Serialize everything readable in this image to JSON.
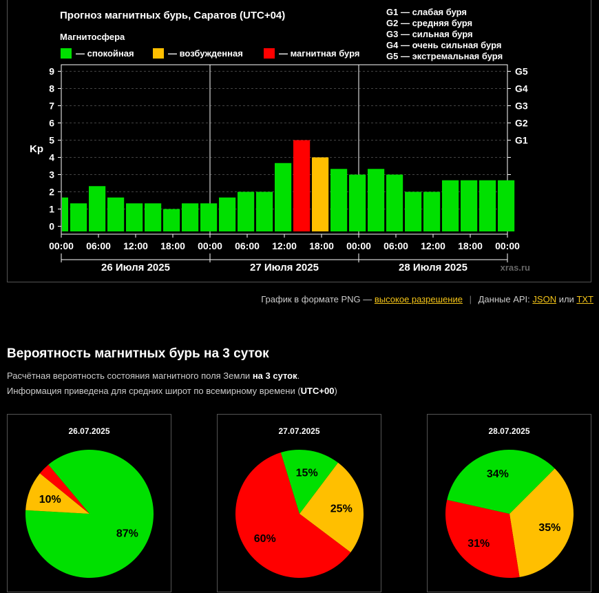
{
  "chart_data": [
    {
      "type": "bar",
      "title": "Прогноз магнитных бурь, Саратов (UTC+04)",
      "legend_title": "Магнитосфера",
      "legend": [
        {
          "label": "— спокойная",
          "color": "#00e000"
        },
        {
          "label": "— возбужденная",
          "color": "#ffbf00"
        },
        {
          "label": "— магнитная буря",
          "color": "#ff0000"
        }
      ],
      "g_scale": [
        "G1 — слабая буря",
        "G2 — средняя буря",
        "G3 — сильная буря",
        "G4 — очень сильная буря",
        "G5 — экстремальная буря"
      ],
      "ylabel": "Kp",
      "ylim": [
        0,
        9
      ],
      "yticks": [
        "0",
        "1",
        "2",
        "3",
        "4",
        "5",
        "6",
        "7",
        "8",
        "9"
      ],
      "right_ticks": [
        {
          "label": "G1",
          "value": 5
        },
        {
          "label": "G2",
          "value": 6
        },
        {
          "label": "G3",
          "value": 7
        },
        {
          "label": "G4",
          "value": 8
        },
        {
          "label": "G5",
          "value": 9
        }
      ],
      "xticks": [
        "00:00",
        "06:00",
        "12:00",
        "18:00",
        "00:00",
        "06:00",
        "12:00",
        "18:00",
        "00:00",
        "06:00",
        "12:00",
        "18:00",
        "00:00"
      ],
      "days": [
        "26 Июля 2025",
        "27 Июля 2025",
        "28 Июля 2025"
      ],
      "watermark": "xras.ru",
      "grid": true,
      "series": [
        {
          "values": [
            1.67,
            1.33,
            2.33,
            1.67,
            1.33,
            1.33,
            1.0,
            1.33,
            1.33,
            1.67,
            2.0,
            2.0,
            3.67,
            5.0,
            4.0,
            3.33,
            3.0,
            3.33,
            3.0,
            2.0,
            2.0,
            2.67,
            2.67,
            2.67,
            2.67
          ],
          "levels": [
            "quiet",
            "quiet",
            "quiet",
            "quiet",
            "quiet",
            "quiet",
            "quiet",
            "quiet",
            "quiet",
            "quiet",
            "quiet",
            "quiet",
            "quiet",
            "storm",
            "active",
            "quiet",
            "quiet",
            "quiet",
            "quiet",
            "quiet",
            "quiet",
            "quiet",
            "quiet",
            "quiet",
            "quiet"
          ]
        }
      ],
      "colors": {
        "quiet": "#00e000",
        "active": "#ffbf00",
        "storm": "#ff0000"
      }
    },
    {
      "type": "pie",
      "title": "26.07.2025",
      "slices": [
        {
          "label": "87%",
          "value": 87,
          "color": "#00e000",
          "show_label": true
        },
        {
          "label": "10%",
          "value": 10,
          "color": "#ffbf00",
          "show_label": true
        },
        {
          "label": "3%",
          "value": 3,
          "color": "#ff0000",
          "show_label": false
        }
      ]
    },
    {
      "type": "pie",
      "title": "27.07.2025",
      "slices": [
        {
          "label": "25%",
          "value": 25,
          "color": "#ffbf00",
          "show_label": true
        },
        {
          "label": "60%",
          "value": 60,
          "color": "#ff0000",
          "show_label": true
        },
        {
          "label": "15%",
          "value": 15,
          "color": "#00e000",
          "show_label": true
        }
      ]
    },
    {
      "type": "pie",
      "title": "28.07.2025",
      "slices": [
        {
          "label": "35%",
          "value": 35,
          "color": "#ffbf00",
          "show_label": true
        },
        {
          "label": "31%",
          "value": 31,
          "color": "#ff0000",
          "show_label": true
        },
        {
          "label": "34%",
          "value": 34,
          "color": "#00e000",
          "show_label": true
        }
      ]
    }
  ],
  "links": {
    "png_text": "График в формате PNG —",
    "hires_label": "высокое разрешение",
    "api_text": "Данные API:",
    "json_label": "JSON",
    "or_text": "или",
    "txt_label": "TXT"
  },
  "section": {
    "title": "Вероятность магнитных бурь на 3 суток",
    "info1_text": "Расчётная вероятность состояния магнитного поля Земли",
    "info1_bold": "на 3 суток",
    "info1_end": ".",
    "info2_text": "Информация приведена для средних широт по всемирному времени (",
    "info2_bold": "UTC+00",
    "info2_end": ")"
  }
}
